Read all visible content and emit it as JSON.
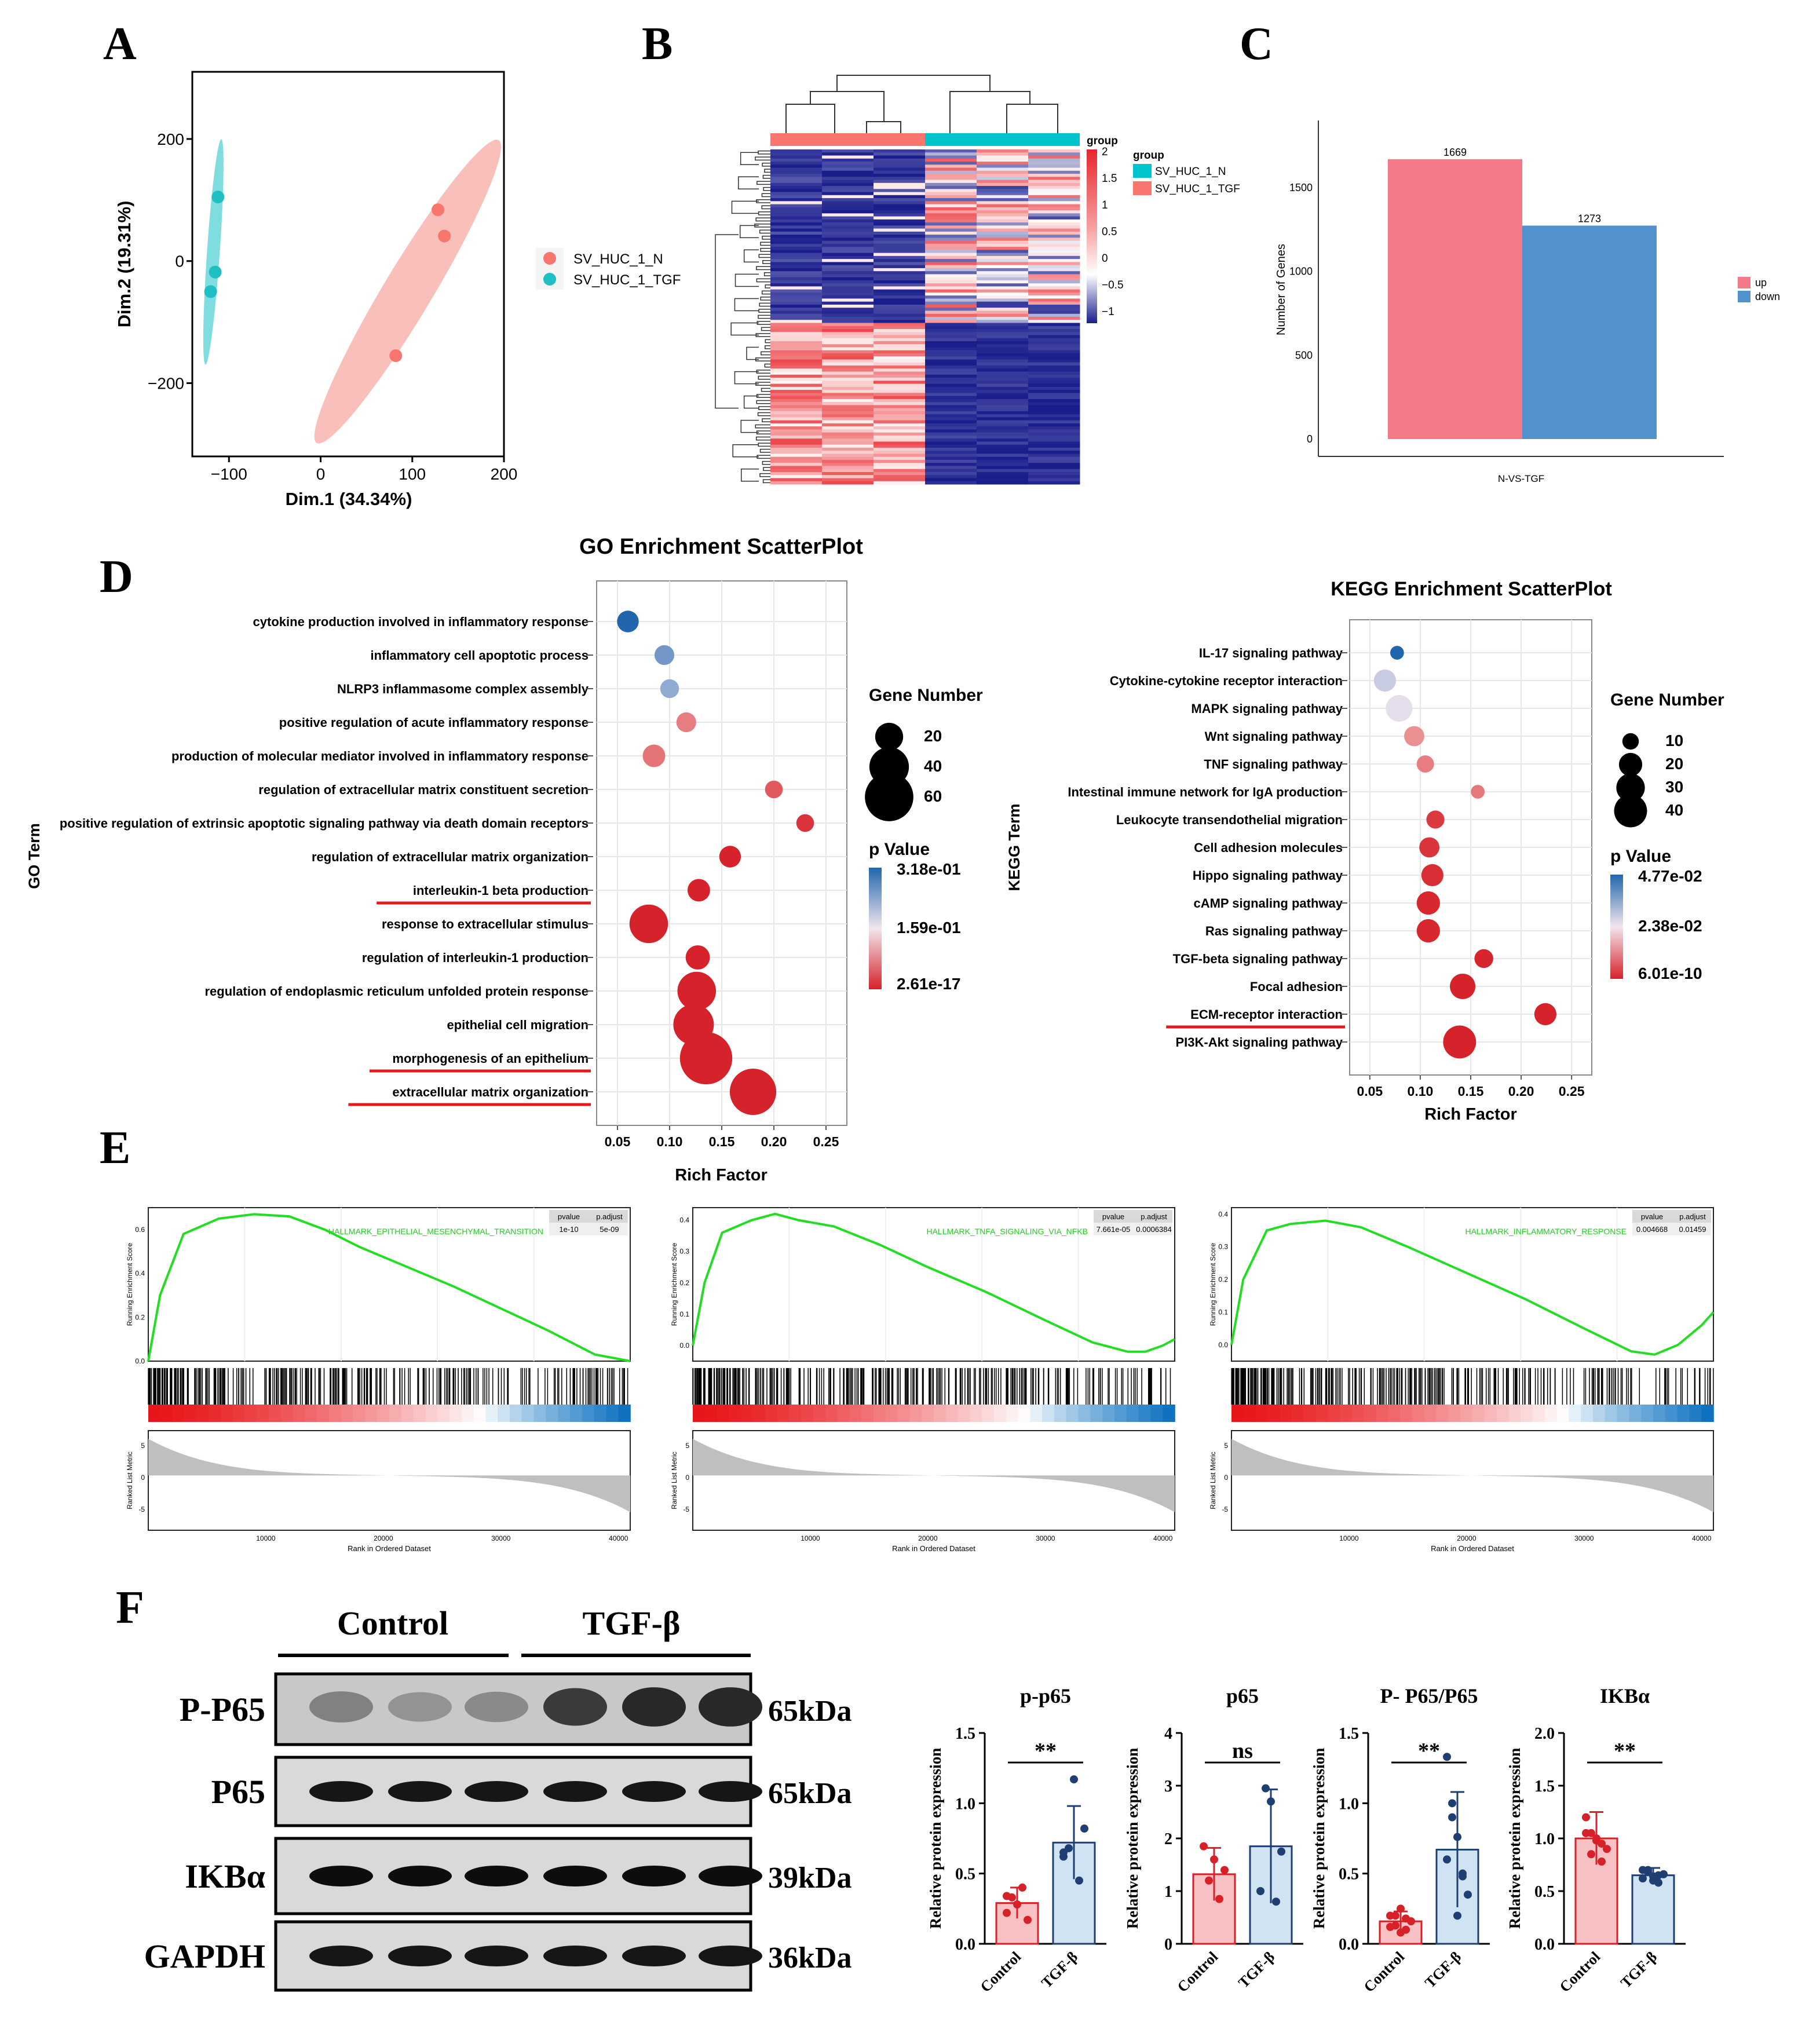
{
  "panel_labels": {
    "A": "A",
    "B": "B",
    "C": "C",
    "D": "D",
    "E": "E",
    "F": "F"
  },
  "chart_data": [
    {
      "id": "A",
      "type": "scatter",
      "title": "",
      "xlabel": "Dim.1 (34.34%)",
      "ylabel": "Dim.2 (19.31%)",
      "xlim": [
        -140,
        200
      ],
      "ylim": [
        -320,
        310
      ],
      "xticks": [
        -100,
        0,
        100,
        200
      ],
      "yticks": [
        -200,
        0,
        200
      ],
      "tick_labels_x": [
        "−100",
        "0",
        "100",
        "200"
      ],
      "tick_labels_y": [
        "−200",
        "0",
        "200"
      ],
      "series": [
        {
          "name": "SV_HUC_1_N",
          "color": "#f8766d",
          "ellipse_color": "#f9bfbb",
          "points": [
            [
              128,
              84
            ],
            [
              135,
              41
            ],
            [
              82,
              -155
            ]
          ]
        },
        {
          "name": "SV_HUC_1_TGF",
          "color": "#1fbfc4",
          "ellipse_color": "#7fdde0",
          "points": [
            [
              -112,
              105
            ],
            [
              -115,
              -18
            ],
            [
              -120,
              -50
            ]
          ]
        }
      ]
    },
    {
      "id": "B",
      "type": "heatmap",
      "legend_title": "group",
      "groups": [
        "SV_HUC_1_N",
        "SV_HUC_1_TGF"
      ],
      "group_colors": [
        "#f8766d",
        "#00c4cc"
      ],
      "scale_ticks": [
        "2",
        "1.5",
        "1",
        "0.5",
        "0",
        "−0.5",
        "−1"
      ],
      "scale_colors": [
        "#e8262b",
        "#ffffff",
        "#1a1e8c"
      ]
    },
    {
      "id": "C",
      "type": "bar",
      "categories": [
        "N-VS-TGF"
      ],
      "series": [
        {
          "name": "up",
          "values": [
            1669
          ],
          "color": "#f47a8a"
        },
        {
          "name": "down",
          "values": [
            1273
          ],
          "color": "#5192cc"
        }
      ],
      "data_labels": [
        "1669",
        "1273"
      ],
      "ylabel": "Number of Genes",
      "xlabel": "",
      "ylim": [
        0,
        1900
      ],
      "yticks": [
        "0",
        "500",
        "1000",
        "1500"
      ]
    },
    {
      "id": "D-GO",
      "type": "scatter",
      "title": "GO Enrichment ScatterPlot",
      "xlabel": "Rich Factor",
      "ylabel": "GO Term",
      "xlim": [
        0.03,
        0.27
      ],
      "xticks": [
        "0.05",
        "0.10",
        "0.15",
        "0.20",
        "0.25"
      ],
      "size_legend_title": "Gene Number",
      "size_legend_values": [
        "20",
        "40",
        "60"
      ],
      "color_legend_title": "p Value",
      "color_legend_labels": [
        "3.18e-01",
        "1.59e-01",
        "2.61e-17"
      ],
      "terms": [
        {
          "term": "cytokine production involved in inflammatory response",
          "rich": 0.06,
          "genes": 12,
          "p": 0.318,
          "underline": false
        },
        {
          "term": "inflammatory cell apoptotic process",
          "rich": 0.095,
          "genes": 10,
          "p": 0.26,
          "underline": false
        },
        {
          "term": "NLRP3 inflammasome complex assembly",
          "rich": 0.1,
          "genes": 9,
          "p": 0.24,
          "underline": false
        },
        {
          "term": "positive regulation of acute inflammatory response",
          "rich": 0.116,
          "genes": 10,
          "p": 0.1,
          "underline": false
        },
        {
          "term": "production of molecular mediator involved in inflammatory response",
          "rich": 0.085,
          "genes": 13,
          "p": 0.09,
          "underline": false
        },
        {
          "term": "regulation of extracellular matrix constituent secretion",
          "rich": 0.2,
          "genes": 8,
          "p": 0.06,
          "underline": false
        },
        {
          "term": "positive regulation of extrinsic apoptotic signaling pathway via death domain receptors",
          "rich": 0.23,
          "genes": 8,
          "p": 0.02,
          "underline": false
        },
        {
          "term": "regulation of extracellular matrix organization",
          "rich": 0.158,
          "genes": 12,
          "p": 0.001,
          "underline": false
        },
        {
          "term": "interleukin-1 beta production",
          "rich": 0.128,
          "genes": 13,
          "p": 0.0001,
          "underline": true
        },
        {
          "term": "response to extracellular stimulus",
          "rich": 0.08,
          "genes": 38,
          "p": 1e-05,
          "underline": false
        },
        {
          "term": "regulation of interleukin-1 production",
          "rich": 0.127,
          "genes": 15,
          "p": 0.0001,
          "underline": false
        },
        {
          "term": "regulation of endoplasmic reticulum unfolded protein response",
          "rich": 0.126,
          "genes": 38,
          "p": 0.0,
          "underline": false
        },
        {
          "term": "epithelial cell migration",
          "rich": 0.123,
          "genes": 42,
          "p": 0.0,
          "underline": false
        },
        {
          "term": "morphogenesis of an epithelium",
          "rich": 0.135,
          "genes": 70,
          "p": 0.0,
          "underline": true
        },
        {
          "term": "extracellular matrix organization",
          "rich": 0.18,
          "genes": 55,
          "p": 0.0,
          "underline": true
        }
      ]
    },
    {
      "id": "D-KEGG",
      "type": "scatter",
      "title": "KEGG Enrichment ScatterPlot",
      "xlabel": "Rich Factor",
      "ylabel": "KEGG Term",
      "xlim": [
        0.03,
        0.27
      ],
      "xticks": [
        "0.05",
        "0.10",
        "0.15",
        "0.20",
        "0.25"
      ],
      "size_legend_title": "Gene Number",
      "size_legend_values": [
        "10",
        "20",
        "30",
        "40"
      ],
      "color_legend_title": "p Value",
      "color_legend_labels": [
        "4.77e-02",
        "2.38e-02",
        "6.01e-10"
      ],
      "terms": [
        {
          "term": "IL-17 signaling pathway",
          "rich": 0.077,
          "genes": 7,
          "p": 0.0477,
          "underline": false
        },
        {
          "term": "Cytokine-cytokine receptor interaction",
          "rich": 0.065,
          "genes": 18,
          "p": 0.03,
          "underline": false
        },
        {
          "term": "MAPK signaling pathway",
          "rich": 0.079,
          "genes": 26,
          "p": 0.027,
          "underline": false
        },
        {
          "term": "Wnt signaling pathway",
          "rich": 0.094,
          "genes": 15,
          "p": 0.018,
          "underline": false
        },
        {
          "term": "TNF signaling pathway",
          "rich": 0.105,
          "genes": 11,
          "p": 0.015,
          "underline": false
        },
        {
          "term": "Intestinal immune network for IgA production",
          "rich": 0.157,
          "genes": 7,
          "p": 0.014,
          "underline": false
        },
        {
          "term": "Leukocyte transendothelial migration",
          "rich": 0.115,
          "genes": 12,
          "p": 0.004,
          "underline": false
        },
        {
          "term": "Cell adhesion molecules",
          "rich": 0.109,
          "genes": 15,
          "p": 0.003,
          "underline": false
        },
        {
          "term": "Hippo signaling pathway",
          "rich": 0.112,
          "genes": 18,
          "p": 0.002,
          "underline": false
        },
        {
          "term": "cAMP signaling pathway",
          "rich": 0.108,
          "genes": 20,
          "p": 0.001,
          "underline": false
        },
        {
          "term": "Ras signaling pathway",
          "rich": 0.108,
          "genes": 20,
          "p": 0.001,
          "underline": false
        },
        {
          "term": "TGF-beta signaling pathway",
          "rich": 0.163,
          "genes": 13,
          "p": 0.0005,
          "underline": false
        },
        {
          "term": "Focal adhesion",
          "rich": 0.142,
          "genes": 24,
          "p": 0.0001,
          "underline": false
        },
        {
          "term": "ECM-receptor interaction",
          "rich": 0.224,
          "genes": 18,
          "p": 0.0,
          "underline": true
        },
        {
          "term": "PI3K-Akt signaling pathway",
          "rich": 0.139,
          "genes": 40,
          "p": 0.0,
          "underline": false
        }
      ]
    },
    {
      "id": "E",
      "type": "line",
      "xlabel": "Rank in Ordered Dataset",
      "ylabel_top": "Running Enrichment Score",
      "ylabel_bottom": "Ranked List Metric",
      "xticks": [
        "10000",
        "20000",
        "30000",
        "40000"
      ],
      "table_headers": [
        "pvalue",
        "p.adjust"
      ],
      "plots": [
        {
          "name": "HALLMARK_EPITHELIAL_MESENCHYMAL_TRANSITION",
          "pvalue": "1e-10",
          "padjust": "5e-09",
          "yticks": [
            "0.0",
            "0.2",
            "0.4",
            "0.6"
          ],
          "ylim": [
            0,
            0.7
          ],
          "metric_ticks": [
            "5",
            "0",
            "-5"
          ],
          "x": [
            0,
            1,
            3,
            6,
            9,
            12,
            15,
            18,
            22,
            26,
            30,
            34,
            38,
            41
          ],
          "y": [
            0.0,
            0.3,
            0.58,
            0.65,
            0.67,
            0.66,
            0.6,
            0.52,
            0.43,
            0.34,
            0.24,
            0.14,
            0.03,
            0.0
          ]
        },
        {
          "name": "HALLMARK_TNFA_SIGNALING_VIA_NFKB",
          "pvalue": "7.661e-05",
          "padjust": "0.0006384",
          "yticks": [
            "0.0",
            "0.1",
            "0.2",
            "0.3",
            "0.4"
          ],
          "ylim": [
            -0.05,
            0.44
          ],
          "metric_ticks": [
            "5",
            "0",
            "-5"
          ],
          "x": [
            0,
            1,
            2.5,
            5,
            7,
            9,
            12,
            16,
            20,
            25,
            30,
            34,
            37,
            38.5,
            40,
            41
          ],
          "y": [
            0.0,
            0.2,
            0.36,
            0.4,
            0.42,
            0.4,
            0.38,
            0.32,
            0.25,
            0.17,
            0.08,
            0.01,
            -0.02,
            -0.02,
            0.0,
            0.02
          ]
        },
        {
          "name": "HALLMARK_INFLAMMATORY_RESPONSE",
          "pvalue": "0.004668",
          "padjust": "0.01459",
          "yticks": [
            "0.0",
            "0.1",
            "0.2",
            "0.3",
            "0.4"
          ],
          "ylim": [
            -0.05,
            0.42
          ],
          "metric_ticks": [
            "5",
            "0",
            "-5"
          ],
          "x": [
            0,
            1,
            3,
            5,
            8,
            11,
            15,
            20,
            25,
            30,
            34,
            36,
            38,
            40,
            41
          ],
          "y": [
            0.0,
            0.2,
            0.35,
            0.37,
            0.38,
            0.36,
            0.3,
            0.22,
            0.14,
            0.05,
            -0.02,
            -0.03,
            0.0,
            0.06,
            0.1
          ]
        }
      ]
    },
    {
      "id": "F-blot",
      "type": "table",
      "groups": [
        "Control",
        "TGF-β"
      ],
      "rows": [
        {
          "protein": "P-P65",
          "size": "65kDa"
        },
        {
          "protein": "P65",
          "size": "65kDa"
        },
        {
          "protein": "IKBα",
          "size": "39kDa"
        },
        {
          "protein": "GAPDH",
          "size": "36kDa"
        }
      ]
    },
    {
      "id": "F-bars",
      "type": "bar",
      "ylabel": "Relative protein expression",
      "categories": [
        "Control",
        "TGF-β"
      ],
      "colors": {
        "control": "#d62128",
        "tgf": "#1f3f73"
      },
      "plots": [
        {
          "title": "p-p65",
          "ylim": [
            0,
            1.5
          ],
          "yticks": [
            "0.0",
            "0.5",
            "1.0",
            "1.5"
          ],
          "sig": "**",
          "means": [
            0.29,
            0.72
          ],
          "sd": [
            0.11,
            0.26
          ],
          "points": [
            [
              0.22,
              0.33,
              0.28,
              0.4,
              0.17,
              0.34
            ],
            [
              0.65,
              0.68,
              1.17,
              0.45,
              0.82,
              0.62
            ]
          ]
        },
        {
          "title": "p65",
          "ylim": [
            0,
            4
          ],
          "yticks": [
            "0",
            "1",
            "2",
            "3",
            "4"
          ],
          "sig": "ns",
          "means": [
            1.32,
            1.85
          ],
          "sd": [
            0.5,
            1.08
          ],
          "points": [
            [
              1.85,
              1.2,
              1.6,
              0.85,
              1.4
            ],
            [
              1.0,
              2.95,
              2.7,
              0.8,
              1.75
            ]
          ]
        },
        {
          "title": "P- P65/P65",
          "ylim": [
            0,
            1.5
          ],
          "yticks": [
            "0.0",
            "0.5",
            "1.0",
            "1.5"
          ],
          "sig": "**",
          "means": [
            0.16,
            0.67
          ],
          "sd": [
            0.07,
            0.41
          ],
          "points": [
            [
              0.2,
              0.13,
              0.25,
              0.1,
              0.16,
              0.12,
              0.2,
              0.08,
              0.18
            ],
            [
              1.33,
              0.9,
              0.76,
              0.5,
              0.35,
              0.6,
              1.0,
              0.2,
              0.48
            ]
          ]
        },
        {
          "title": "IKBα",
          "ylim": [
            0,
            2.0
          ],
          "yticks": [
            "0.0",
            "0.5",
            "1.0",
            "1.5",
            "2.0"
          ],
          "sig": "**",
          "means": [
            1.0,
            0.65
          ],
          "sd": [
            0.25,
            0.07
          ],
          "points": [
            [
              1.2,
              1.05,
              0.98,
              0.78,
              0.9,
              1.05,
              0.85,
              1.0,
              0.95
            ],
            [
              0.7,
              0.68,
              0.6,
              0.65,
              0.66,
              0.62,
              0.7,
              0.64,
              0.58
            ]
          ]
        }
      ]
    }
  ]
}
